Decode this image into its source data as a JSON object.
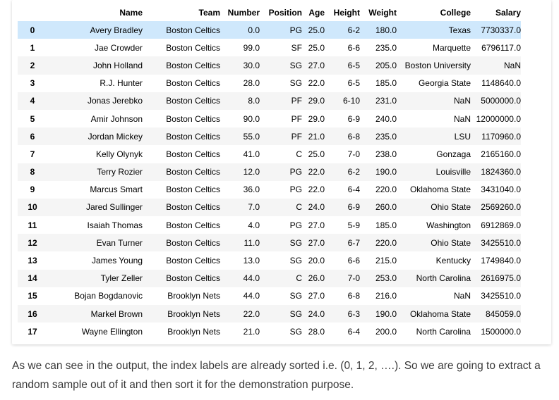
{
  "table": {
    "columns": [
      "",
      "Name",
      "Team",
      "Number",
      "Position",
      "Age",
      "Height",
      "Weight",
      "College",
      "Salary"
    ],
    "rows": [
      [
        "0",
        "Avery Bradley",
        "Boston Celtics",
        "0.0",
        "PG",
        "25.0",
        "6-2",
        "180.0",
        "Texas",
        "7730337.0"
      ],
      [
        "1",
        "Jae Crowder",
        "Boston Celtics",
        "99.0",
        "SF",
        "25.0",
        "6-6",
        "235.0",
        "Marquette",
        "6796117.0"
      ],
      [
        "2",
        "John Holland",
        "Boston Celtics",
        "30.0",
        "SG",
        "27.0",
        "6-5",
        "205.0",
        "Boston University",
        "NaN"
      ],
      [
        "3",
        "R.J. Hunter",
        "Boston Celtics",
        "28.0",
        "SG",
        "22.0",
        "6-5",
        "185.0",
        "Georgia State",
        "1148640.0"
      ],
      [
        "4",
        "Jonas Jerebko",
        "Boston Celtics",
        "8.0",
        "PF",
        "29.0",
        "6-10",
        "231.0",
        "NaN",
        "5000000.0"
      ],
      [
        "5",
        "Amir Johnson",
        "Boston Celtics",
        "90.0",
        "PF",
        "29.0",
        "6-9",
        "240.0",
        "NaN",
        "12000000.0"
      ],
      [
        "6",
        "Jordan Mickey",
        "Boston Celtics",
        "55.0",
        "PF",
        "21.0",
        "6-8",
        "235.0",
        "LSU",
        "1170960.0"
      ],
      [
        "7",
        "Kelly Olynyk",
        "Boston Celtics",
        "41.0",
        "C",
        "25.0",
        "7-0",
        "238.0",
        "Gonzaga",
        "2165160.0"
      ],
      [
        "8",
        "Terry Rozier",
        "Boston Celtics",
        "12.0",
        "PG",
        "22.0",
        "6-2",
        "190.0",
        "Louisville",
        "1824360.0"
      ],
      [
        "9",
        "Marcus Smart",
        "Boston Celtics",
        "36.0",
        "PG",
        "22.0",
        "6-4",
        "220.0",
        "Oklahoma State",
        "3431040.0"
      ],
      [
        "10",
        "Jared Sullinger",
        "Boston Celtics",
        "7.0",
        "C",
        "24.0",
        "6-9",
        "260.0",
        "Ohio State",
        "2569260.0"
      ],
      [
        "11",
        "Isaiah Thomas",
        "Boston Celtics",
        "4.0",
        "PG",
        "27.0",
        "5-9",
        "185.0",
        "Washington",
        "6912869.0"
      ],
      [
        "12",
        "Evan Turner",
        "Boston Celtics",
        "11.0",
        "SG",
        "27.0",
        "6-7",
        "220.0",
        "Ohio State",
        "3425510.0"
      ],
      [
        "13",
        "James Young",
        "Boston Celtics",
        "13.0",
        "SG",
        "20.0",
        "6-6",
        "215.0",
        "Kentucky",
        "1749840.0"
      ],
      [
        "14",
        "Tyler Zeller",
        "Boston Celtics",
        "44.0",
        "C",
        "26.0",
        "7-0",
        "253.0",
        "North Carolina",
        "2616975.0"
      ],
      [
        "15",
        "Bojan Bogdanovic",
        "Brooklyn Nets",
        "44.0",
        "SG",
        "27.0",
        "6-8",
        "216.0",
        "NaN",
        "3425510.0"
      ],
      [
        "16",
        "Markel Brown",
        "Brooklyn Nets",
        "22.0",
        "SG",
        "24.0",
        "6-3",
        "190.0",
        "Oklahoma State",
        "845059.0"
      ],
      [
        "17",
        "Wayne Ellington",
        "Brooklyn Nets",
        "21.0",
        "SG",
        "28.0",
        "6-4",
        "200.0",
        "North Carolina",
        "1500000.0"
      ]
    ],
    "highlight_row_color": "#cfe8fc"
  },
  "caption": {
    "text": "As we can see in the output, the index labels are already sorted i.e. (0, 1, 2, ….). So we are going to extract a random sample out of it and then sort it for the demonstration purpose."
  }
}
